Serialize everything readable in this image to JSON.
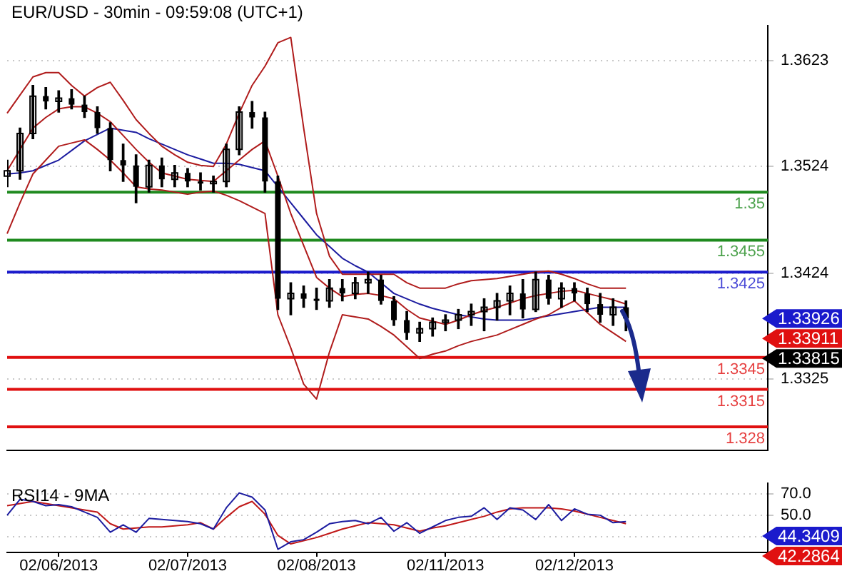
{
  "chart_data": [
    {
      "type": "candlestick",
      "title": "EUR/USD - 30min - 09:59:08 (UTC+1)",
      "color": "#000000",
      "categories": [
        null,
        null,
        null,
        null,
        null,
        null,
        null,
        null,
        null,
        null,
        null,
        null,
        null,
        null,
        null,
        null,
        null,
        null,
        null,
        null,
        null,
        null,
        null,
        null,
        null,
        null,
        null,
        null,
        null,
        null,
        null,
        null,
        null,
        null,
        null,
        null,
        null,
        null,
        null,
        null,
        null,
        null,
        null,
        null,
        null,
        null,
        null,
        null,
        null,
        null,
        null,
        null,
        null,
        null,
        null,
        null,
        null,
        null,
        null,
        null
      ],
      "ohlc": [
        [
          1.3515,
          1.353,
          1.3505,
          1.352
        ],
        [
          1.352,
          1.356,
          1.3512,
          1.3555
        ],
        [
          1.3555,
          1.36,
          1.355,
          1.359
        ],
        [
          1.359,
          1.3598,
          1.3578,
          1.3585
        ],
        [
          1.3585,
          1.3595,
          1.3575,
          1.3588
        ],
        [
          1.3588,
          1.3596,
          1.3578,
          1.3582
        ],
        [
          1.3582,
          1.359,
          1.357,
          1.3575
        ],
        [
          1.3575,
          1.358,
          1.3555,
          1.356
        ],
        [
          1.356,
          1.3565,
          1.352,
          1.353
        ],
        [
          1.353,
          1.3545,
          1.351,
          1.3525
        ],
        [
          1.3525,
          1.3535,
          1.349,
          1.3505
        ],
        [
          1.3505,
          1.353,
          1.35,
          1.3525
        ],
        [
          1.3525,
          1.3532,
          1.3505,
          1.3512
        ],
        [
          1.3512,
          1.3525,
          1.3505,
          1.3518
        ],
        [
          1.3518,
          1.3522,
          1.3505,
          1.351
        ],
        [
          1.351,
          1.3518,
          1.3502,
          1.3508
        ],
        [
          1.3508,
          1.3515,
          1.35,
          1.351
        ],
        [
          1.351,
          1.3545,
          1.3505,
          1.354
        ],
        [
          1.354,
          1.358,
          1.3535,
          1.3575
        ],
        [
          1.3575,
          1.3585,
          1.356,
          1.357
        ],
        [
          1.357,
          1.3575,
          1.35,
          1.351
        ],
        [
          1.351,
          1.3515,
          1.339,
          1.34
        ],
        [
          1.34,
          1.3415,
          1.3385,
          1.3405
        ],
        [
          1.3405,
          1.3412,
          1.3392,
          1.34
        ],
        [
          1.34,
          1.341,
          1.339,
          1.3398
        ],
        [
          1.3398,
          1.3418,
          1.3392,
          1.341
        ],
        [
          1.341,
          1.3418,
          1.3398,
          1.3405
        ],
        [
          1.3405,
          1.342,
          1.34,
          1.3415
        ],
        [
          1.3415,
          1.3425,
          1.3405,
          1.3418
        ],
        [
          1.3418,
          1.3422,
          1.3395,
          1.3398
        ],
        [
          1.3398,
          1.3402,
          1.3375,
          1.338
        ],
        [
          1.338,
          1.3388,
          1.3362,
          1.3368
        ],
        [
          1.3368,
          1.3378,
          1.336,
          1.3372
        ],
        [
          1.3372,
          1.3382,
          1.3365,
          1.3378
        ],
        [
          1.3378,
          1.3385,
          1.337,
          1.338
        ],
        [
          1.338,
          1.339,
          1.3372,
          1.3385
        ],
        [
          1.3385,
          1.3395,
          1.3375,
          1.3388
        ],
        [
          1.3388,
          1.34,
          1.337,
          1.3392
        ],
        [
          1.3392,
          1.3405,
          1.338,
          1.3398
        ],
        [
          1.3398,
          1.3412,
          1.3385,
          1.3405
        ],
        [
          1.3405,
          1.3418,
          1.3382,
          1.339
        ],
        [
          1.339,
          1.3425,
          1.3388,
          1.3418
        ],
        [
          1.3418,
          1.3422,
          1.3395,
          1.34
        ],
        [
          1.34,
          1.3415,
          1.3392,
          1.341
        ],
        [
          1.341,
          1.3415,
          1.3398,
          1.3405
        ],
        [
          1.3405,
          1.341,
          1.3388,
          1.3395
        ],
        [
          1.3395,
          1.3405,
          1.3378,
          1.3385
        ],
        [
          1.3385,
          1.34,
          1.3375,
          1.3392
        ],
        [
          1.3392,
          1.3398,
          1.337,
          1.33815
        ],
        null,
        null,
        null,
        null,
        null,
        null,
        null,
        null,
        null,
        null,
        null
      ],
      "series": [
        {
          "type": "line",
          "color": "#b01c1c",
          "values": [
            1.3574,
            1.3591,
            1.3608,
            1.3612,
            1.3612,
            1.36,
            1.359,
            1.3598,
            1.3603,
            1.3586,
            1.3568,
            1.3555,
            1.3543,
            1.3535,
            1.3528,
            1.3525,
            1.3524,
            1.3545,
            1.3574,
            1.36,
            1.3618,
            1.364,
            1.3645,
            1.356,
            1.348,
            1.344,
            1.3423,
            1.3423,
            1.3423,
            1.3423,
            1.3423,
            1.3415,
            1.341,
            1.341,
            1.341,
            1.3414,
            1.3417,
            1.3418,
            1.3419,
            1.3421,
            1.3423,
            1.3425,
            1.3426,
            1.3423,
            1.3419,
            1.3414,
            1.341,
            1.341,
            1.341,
            null,
            null,
            null,
            null,
            null,
            null,
            null,
            null,
            null,
            null,
            null
          ]
        },
        {
          "type": "line",
          "color": "#b01c1c",
          "values": [
            1.352,
            1.354,
            1.356,
            1.357,
            1.3578,
            1.358,
            1.358,
            1.3574,
            1.3566,
            1.3553,
            1.354,
            1.3528,
            1.3518,
            1.3515,
            1.3512,
            1.3511,
            1.351,
            1.352,
            1.353,
            1.354,
            1.3548,
            1.3515,
            1.348,
            1.345,
            1.342,
            1.341,
            1.3402,
            1.3404,
            1.3405,
            1.3403,
            1.34,
            1.339,
            1.3382,
            1.3379,
            1.3376,
            1.338,
            1.3385,
            1.3389,
            1.3392,
            1.3396,
            1.34,
            1.3403,
            1.3405,
            1.3407,
            1.3408,
            1.3405,
            1.3402,
            1.3399,
            1.3395,
            null,
            null,
            null,
            null,
            null,
            null,
            null,
            null,
            null,
            null,
            null
          ]
        },
        {
          "type": "line",
          "color": "#b01c1c",
          "values": [
            1.3461,
            1.349,
            1.3517,
            1.353,
            1.3543,
            1.3546,
            1.3549,
            1.354,
            1.353,
            1.3518,
            1.3505,
            1.3503,
            1.3502,
            1.35,
            1.3498,
            1.35,
            1.3501,
            1.3497,
            1.3492,
            1.3486,
            1.348,
            1.3385,
            1.3354,
            1.332,
            1.3306,
            1.335,
            1.3385,
            1.3383,
            1.3381,
            1.3374,
            1.3366,
            1.3355,
            1.3344,
            1.3348,
            1.3351,
            1.3356,
            1.336,
            1.3363,
            1.3366,
            1.3371,
            1.3376,
            1.3381,
            1.3385,
            1.3392,
            1.3398,
            1.3387,
            1.3376,
            1.3368,
            1.336,
            null,
            null,
            null,
            null,
            null,
            null,
            null,
            null,
            null,
            null,
            null
          ]
        },
        {
          "type": "line",
          "color": "#1c1ca0",
          "values": [
            1.3517,
            1.3518,
            1.352,
            1.3525,
            1.353,
            1.3539,
            1.3548,
            1.3554,
            1.356,
            1.3558,
            1.3556,
            1.355,
            1.3545,
            1.354,
            1.3535,
            1.3531,
            1.3527,
            1.3527,
            1.3526,
            1.3523,
            1.352,
            1.3505,
            1.349,
            1.3475,
            1.346,
            1.3449,
            1.3438,
            1.3431,
            1.3425,
            1.3415,
            1.3405,
            1.34,
            1.3395,
            1.3391,
            1.3388,
            1.3385,
            1.3383,
            1.3381,
            1.338,
            1.338,
            1.338,
            1.3382,
            1.3384,
            1.3386,
            1.3388,
            1.339,
            1.3392,
            1.3392,
            1.3392,
            null,
            null,
            null,
            null,
            null,
            null,
            null,
            null,
            null,
            null,
            null
          ]
        }
      ],
      "ref_lines": [
        {
          "axis": "y",
          "value": 1.35,
          "label": "1.35",
          "color": "#1f8a1f"
        },
        {
          "axis": "y",
          "value": 1.3455,
          "label": "1.3455",
          "color": "#1f8a1f"
        },
        {
          "axis": "y",
          "value": 1.3425,
          "label": "1.3425",
          "color": "#1a1acc"
        },
        {
          "axis": "y",
          "value": 1.3345,
          "label": "1.3345",
          "color": "#e01010"
        },
        {
          "axis": "y",
          "value": 1.3315,
          "label": "1.3315",
          "color": "#e01010"
        },
        {
          "axis": "y",
          "value": 1.328,
          "label": "1.328",
          "color": "#e01010"
        }
      ],
      "annotations": [
        "1.33926",
        "1.33911",
        "1.33815"
      ],
      "ylim": [
        1.3258,
        1.3656
      ],
      "yticks": [
        1.3325,
        1.3424,
        1.3524,
        1.3623
      ],
      "grid": "y",
      "marker": "none"
    },
    {
      "type": "line",
      "title": "RSI14 - 9MA",
      "categories": [
        null,
        null,
        null,
        null,
        "02/06/2013",
        null,
        null,
        null,
        null,
        null,
        null,
        null,
        null,
        null,
        "02/07/2013",
        null,
        null,
        null,
        null,
        null,
        null,
        null,
        null,
        null,
        "02/08/2013",
        null,
        null,
        null,
        null,
        null,
        null,
        null,
        null,
        null,
        "02/11/2013",
        null,
        null,
        null,
        null,
        null,
        null,
        null,
        null,
        null,
        "02/12/2013",
        null,
        null,
        null,
        null,
        null,
        null,
        null,
        null,
        null,
        null,
        null,
        null,
        null,
        null,
        null
      ],
      "series": [
        {
          "color": "#1c1ca0",
          "values": [
            50,
            65,
            63,
            59,
            60,
            58,
            53,
            48,
            34,
            41,
            34,
            47,
            46,
            45,
            44,
            42,
            37,
            57,
            71,
            67,
            55,
            18,
            25,
            27,
            34,
            42,
            44,
            45,
            42,
            48,
            35,
            43,
            33,
            39,
            45,
            48,
            49,
            57,
            46,
            57,
            55,
            46,
            60,
            45,
            56,
            51,
            50,
            43,
            44,
            null,
            null,
            null,
            null,
            null,
            null,
            null,
            null,
            null,
            null,
            null
          ]
        },
        {
          "color": "#c01818",
          "values": [
            59,
            61,
            63,
            61,
            59,
            57,
            55,
            53,
            42,
            37,
            38,
            39,
            39,
            40,
            41,
            43,
            37,
            48,
            58,
            63,
            51,
            31,
            23,
            26,
            29,
            33,
            37,
            40,
            43,
            42,
            41,
            38,
            35,
            38,
            40,
            43,
            46,
            49,
            53,
            56,
            57,
            57,
            57,
            56,
            54,
            51,
            48,
            45,
            42,
            null,
            null,
            null,
            null,
            null,
            null,
            null,
            null,
            null,
            null,
            null
          ]
        }
      ],
      "annotations": [
        "44.3409",
        "42.2864"
      ],
      "ylim": [
        15,
        80
      ],
      "yticks": [
        {
          "value": 70,
          "label": "70.0"
        },
        {
          "value": 50,
          "label": "50.0"
        },
        {
          "value": 30,
          "label": null
        }
      ],
      "grid": "y",
      "marker": "none"
    }
  ]
}
